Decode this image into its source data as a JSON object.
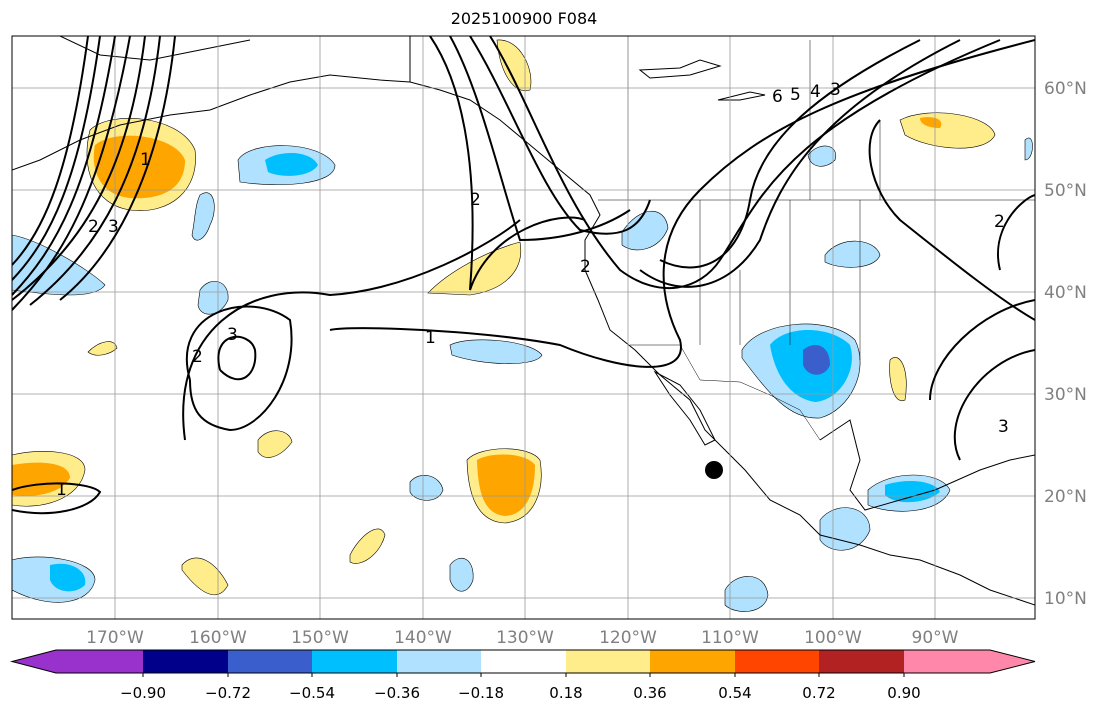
{
  "title": "2025100900 F084",
  "map": {
    "lon_labels": [
      "170°W",
      "160°W",
      "150°W",
      "140°W",
      "130°W",
      "120°W",
      "110°W",
      "100°W",
      "90°W"
    ],
    "lat_labels": [
      "60°N",
      "50°N",
      "40°N",
      "30°N",
      "20°N",
      "10°N"
    ],
    "contour_labels": [
      "1",
      "1",
      "2",
      "3",
      "2",
      "3",
      "2",
      "1",
      "6",
      "5",
      "4",
      "3",
      "2",
      "3",
      "2"
    ],
    "marker": "station-dot"
  },
  "colorbar": {
    "colors": [
      "#9932CC",
      "#00008B",
      "#3A5FCD",
      "#00BFFF",
      "#B0E2FF",
      "#FFFFFF",
      "#FFEC8B",
      "#FFA500",
      "#FF4500",
      "#B22222",
      "#FF88AA"
    ],
    "tick_labels": [
      "−0.90",
      "−0.72",
      "−0.54",
      "−0.36",
      "−0.18",
      "0.18",
      "0.36",
      "0.54",
      "0.72",
      "0.90"
    ]
  },
  "colors": {
    "grid": "#999999",
    "axis_label": "#808080",
    "contour": "#000000"
  }
}
